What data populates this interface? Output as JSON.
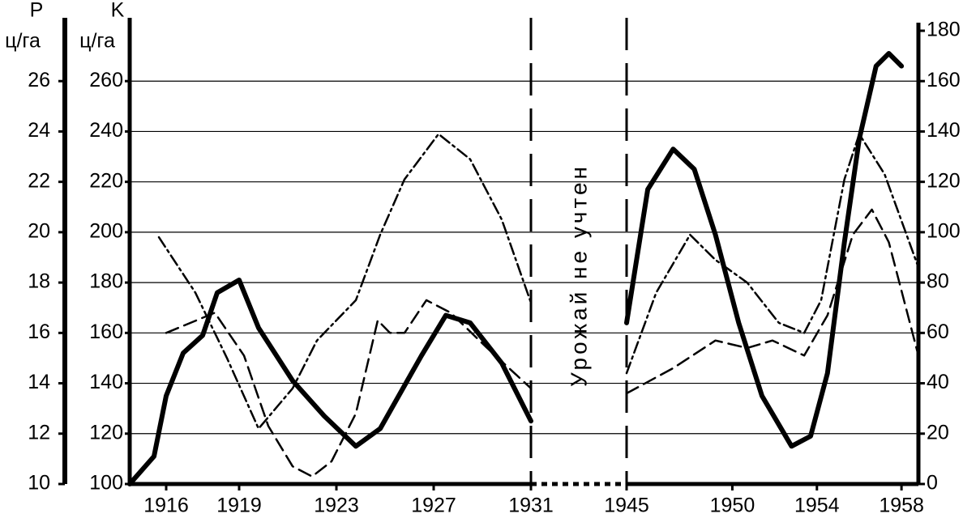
{
  "chart_data": {
    "type": "line",
    "annotation": "Урожай не учтен",
    "ylabel": "P",
    "yunit": "ц/га",
    "ylim": [
      10,
      28
    ],
    "yticks": [
      10,
      12,
      14,
      16,
      18,
      20,
      22,
      24,
      26
    ],
    "klabel": "K",
    "kunit": "ц/га",
    "klim": [
      100,
      280
    ],
    "kticks": [
      100,
      120,
      140,
      160,
      180,
      200,
      220,
      240,
      260
    ],
    "y2lim": [
      0,
      180
    ],
    "y2ticks": [
      0,
      20,
      40,
      60,
      80,
      100,
      120,
      140,
      160,
      180
    ],
    "xlim": [
      1914.5,
      1958.8
    ],
    "x_break": [
      1931,
      1945
    ],
    "xticks": [
      1916,
      1919,
      1923,
      1927,
      1931,
      1945,
      1950,
      1954,
      1958
    ],
    "grid": true,
    "series": [
      {
        "axis": "y",
        "style": "solid",
        "color": "#000000",
        "x": [
          1914.5,
          1915.5,
          1916.0,
          1916.7,
          1917.5,
          1918.1,
          1919.0,
          1919.8,
          1921.2,
          1922.5,
          1923.8,
          1924.8,
          1926.5,
          1927.5,
          1928.5,
          1929.8,
          1931.0
        ],
        "values": [
          10.0,
          11.1,
          13.5,
          15.2,
          15.9,
          17.6,
          18.1,
          16.2,
          14.1,
          12.7,
          11.5,
          12.2,
          15.1,
          16.7,
          16.4,
          14.8,
          12.5
        ]
      },
      {
        "axis": "y",
        "style": "solid",
        "color": "#000000",
        "x": [
          1945.0,
          1946.0,
          1947.2,
          1948.2,
          1949.2,
          1950.3,
          1951.4,
          1952.8,
          1953.7,
          1954.5,
          1955.3,
          1956.0,
          1956.8,
          1957.4,
          1958.0
        ],
        "values": [
          16.4,
          21.7,
          23.3,
          22.5,
          19.9,
          16.4,
          13.5,
          11.5,
          11.9,
          14.4,
          19.6,
          23.7,
          26.6,
          27.1,
          26.6
        ]
      },
      {
        "axis": "k",
        "style": "dashdot",
        "color": "#000000",
        "x": [
          1915.7,
          1917.2,
          1918.5,
          1919.8,
          1921.2,
          1922.2,
          1923.8,
          1924.8,
          1925.8,
          1927.2,
          1928.5,
          1929.8,
          1931.0
        ],
        "values": [
          198,
          176,
          150,
          122,
          138,
          157,
          173,
          199,
          221,
          239,
          229,
          205,
          172
        ]
      },
      {
        "axis": "k",
        "style": "dashdot",
        "color": "#000000",
        "x": [
          1945.0,
          1946.4,
          1948.0,
          1949.2,
          1950.7,
          1952.2,
          1953.4,
          1954.2,
          1955.3,
          1956.0,
          1957.2,
          1958.8
        ],
        "values": [
          144,
          176,
          199,
          189,
          180,
          164,
          160,
          173,
          221,
          239,
          223,
          186
        ]
      },
      {
        "axis": "y2",
        "style": "dashed",
        "color": "#000000",
        "x": [
          1916.0,
          1918.0,
          1919.2,
          1920.2,
          1921.2,
          1922.0,
          1922.8,
          1923.8,
          1924.7,
          1925.2,
          1925.8,
          1926.7,
          1927.7,
          1929.2,
          1931.0
        ],
        "values": [
          60,
          68,
          51,
          23,
          7,
          3,
          9,
          28,
          65,
          60,
          60,
          73,
          68,
          54,
          38
        ]
      },
      {
        "axis": "y2",
        "style": "dashed",
        "color": "#000000",
        "x": [
          1945.0,
          1947.2,
          1949.2,
          1950.7,
          1951.9,
          1953.4,
          1954.5,
          1955.7,
          1956.6,
          1957.4,
          1958.8
        ],
        "values": [
          36,
          46,
          57,
          54,
          57,
          51,
          67,
          99,
          109,
          96,
          51
        ]
      }
    ]
  }
}
